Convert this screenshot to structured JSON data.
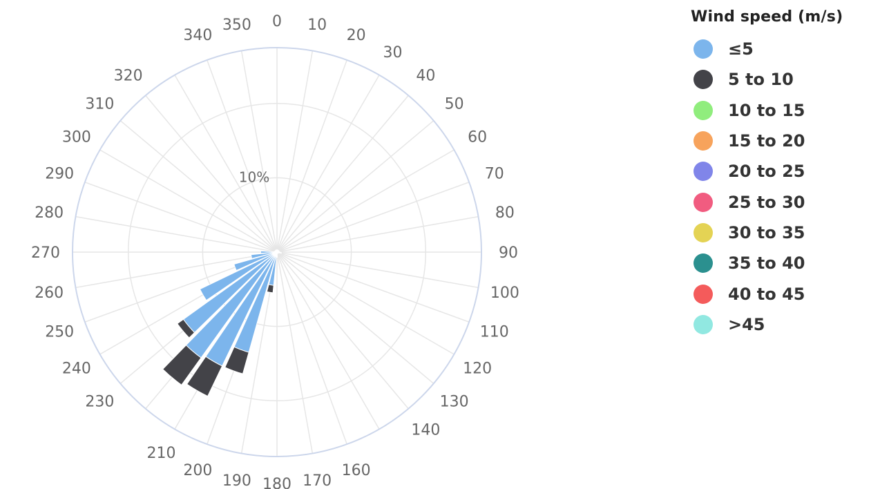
{
  "chart_data": {
    "type": "windrose",
    "legend_title": "Wind speed (m/s)",
    "legend_placement": "right",
    "directions": [
      0,
      10,
      20,
      30,
      40,
      50,
      60,
      70,
      80,
      90,
      100,
      110,
      120,
      130,
      140,
      150,
      160,
      170,
      180,
      190,
      200,
      210,
      220,
      230,
      240,
      250,
      260,
      270,
      280,
      290,
      300,
      310,
      320,
      330,
      340,
      350
    ],
    "direction_labels": [
      "0",
      "10",
      "20",
      "30",
      "40",
      "50",
      "60",
      "70",
      "80",
      "90",
      "100",
      "110",
      "120",
      "130",
      "140",
      "",
      "160",
      "170",
      "180",
      "190",
      "200",
      "210",
      "",
      "230",
      "240",
      "250",
      "260",
      "270",
      "280",
      "290",
      "300",
      "310",
      "320",
      "",
      "340",
      "350"
    ],
    "radial_label": "10%",
    "radial_max": 27.5,
    "radial_rings": [
      10,
      20,
      27.5
    ],
    "grid": true,
    "series": [
      {
        "name": "≤5",
        "color": "#7cb5ec",
        "values": [
          0.3,
          0.3,
          0.3,
          0.3,
          0.3,
          0.3,
          0.3,
          0.3,
          0.3,
          0.4,
          0.6,
          0.3,
          0.2,
          0.2,
          0.2,
          0.2,
          0.2,
          0.2,
          0.3,
          4.5,
          14.0,
          17.0,
          17.5,
          15.5,
          11.5,
          6.0,
          3.5,
          2.2,
          0.4,
          0.3,
          0.3,
          0.3,
          0.3,
          0.3,
          0.3,
          0.3
        ]
      },
      {
        "name": "5 to 10",
        "color": "#434348",
        "values": [
          0,
          0,
          0,
          0,
          0,
          0,
          0,
          0,
          0,
          0,
          0,
          0,
          0,
          0,
          0,
          0,
          0,
          0,
          0.4,
          1.0,
          3.0,
          4.5,
          4.5,
          1.0,
          0,
          0,
          0,
          0,
          0,
          0,
          0,
          0,
          0,
          0,
          0,
          0
        ]
      },
      {
        "name": "10 to 15",
        "color": "#90ed7d",
        "values": []
      },
      {
        "name": "15 to 20",
        "color": "#f7a35c",
        "values": []
      },
      {
        "name": "20 to 25",
        "color": "#8085e9",
        "values": []
      },
      {
        "name": "25 to 30",
        "color": "#f15c80",
        "values": []
      },
      {
        "name": "30 to 35",
        "color": "#e4d354",
        "values": []
      },
      {
        "name": "35 to 40",
        "color": "#2b908f",
        "values": []
      },
      {
        "name": "40 to 45",
        "color": "#f45b5b",
        "values": []
      },
      {
        "name": ">45",
        "color": "#91e8e1",
        "values": []
      }
    ]
  }
}
